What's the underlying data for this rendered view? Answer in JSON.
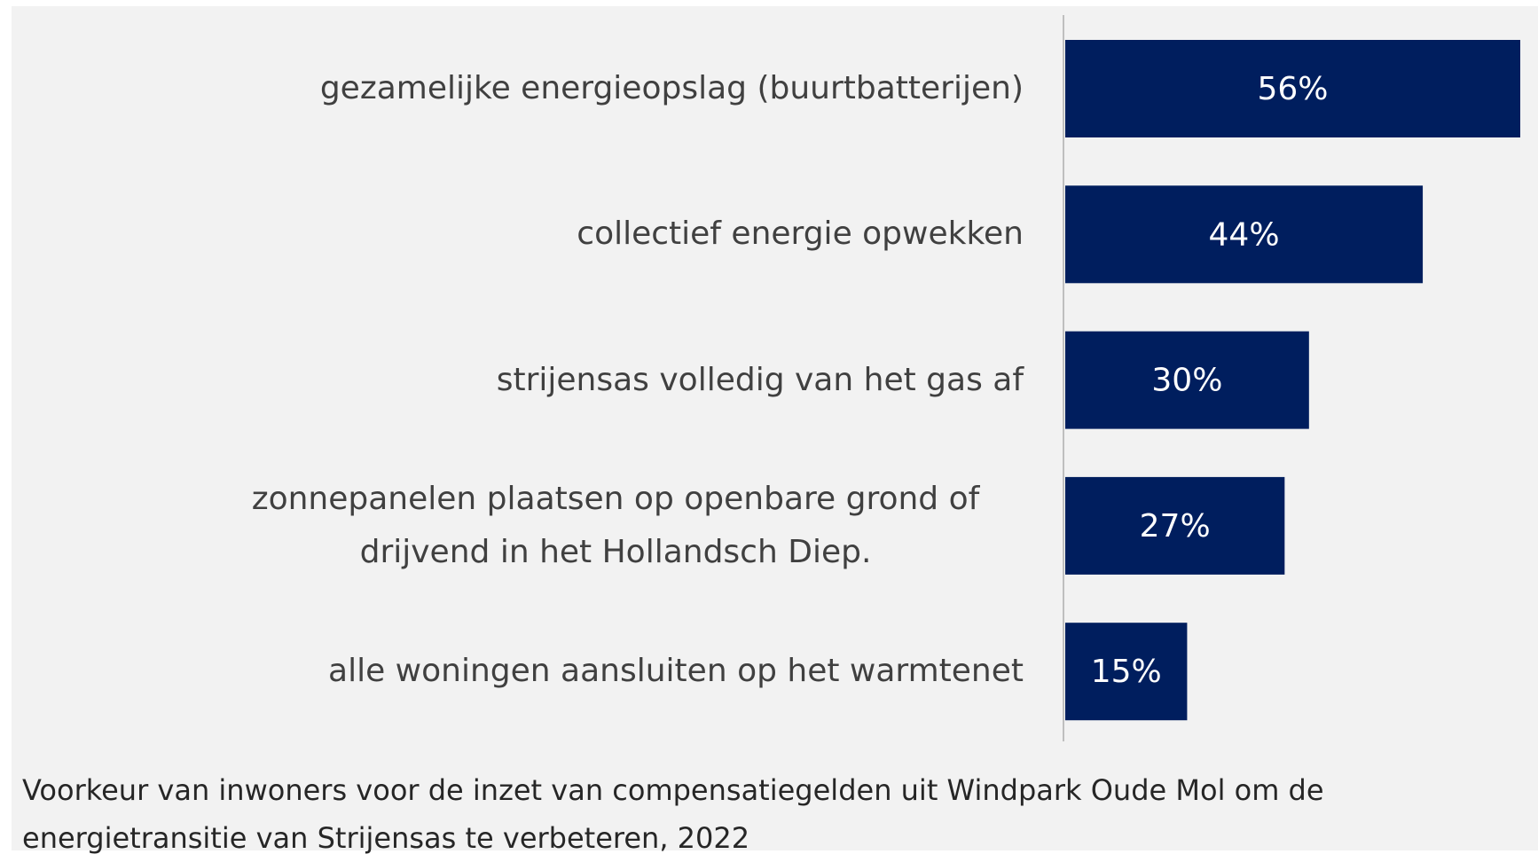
{
  "chart_data": {
    "type": "bar",
    "orientation": "horizontal",
    "categories": [
      "gezamelijke energieopslag (buurtbatterijen)",
      "collectief energie opwekken",
      "strijensas volledig van het gas af",
      "zonnepanelen plaatsen op openbare grond of drijvend in het Hollandsch Diep.",
      "alle woningen aansluiten op het warmtenet"
    ],
    "values": [
      56,
      44,
      30,
      27,
      15
    ],
    "value_labels": [
      "56%",
      "44%",
      "30%",
      "27%",
      "15%"
    ],
    "color": "#001e5e",
    "caption": "Voorkeur van inwoners voor de inzet van compensatiegelden uit Windpark Oude Mol om de energietransitie van Strijensas te verbeteren, 2022"
  }
}
